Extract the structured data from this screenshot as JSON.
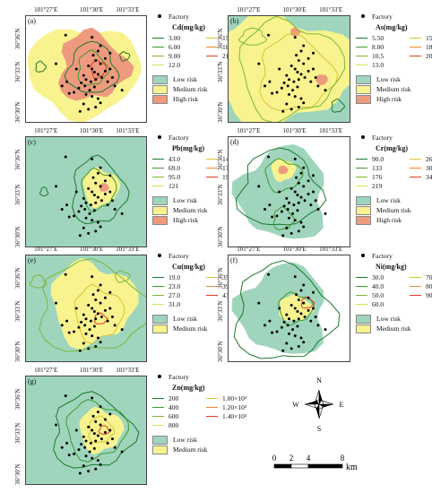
{
  "ticks": {
    "lon": [
      "101°27′E",
      "101°30′E",
      "101°33′E"
    ],
    "lat": [
      "36°36′N",
      "36°33′N",
      "36°30′N"
    ]
  },
  "legend_common": {
    "factory": "Factory",
    "low_risk": "Low risk",
    "medium_risk": "Medium risk",
    "high_risk": "High risk"
  },
  "colors": {
    "low_risk": "#9fd5bd",
    "medium_risk": "#f8f38e",
    "high_risk": "#ee9a7e"
  },
  "panels": [
    {
      "id": "a",
      "label": "(a)",
      "title": "Cd(mg/kg)",
      "classes": [
        "3.00",
        "15.0",
        "6.00",
        "18.0",
        "9.00",
        "21.0",
        "12.0"
      ],
      "class_colors": [
        "#1a7a2a",
        "#d7c33a",
        "#3c9a2c",
        "#f08a2a",
        "#7ab835",
        "#e33b1c",
        "#d8e04a"
      ],
      "risks": [
        "low",
        "medium",
        "high"
      ]
    },
    {
      "id": "b",
      "label": "(b)",
      "title": "As(mg/kg)",
      "classes": [
        "5.50",
        "15.5",
        "8.00",
        "18.0",
        "10.5",
        "20.5",
        "13.0"
      ],
      "class_colors": [
        "#1a7a2a",
        "#d7c33a",
        "#3c9a2c",
        "#f08a2a",
        "#7ab835",
        "#e33b1c",
        "#d8e04a"
      ],
      "risks": [
        "low",
        "medium",
        "high"
      ]
    },
    {
      "id": "c",
      "label": "(c)",
      "title": "Pb(mg/kg)",
      "classes": [
        "43.0",
        "147",
        "69.0",
        "173",
        "95.0",
        "199",
        "121"
      ],
      "class_colors": [
        "#1a7a2a",
        "#d7c33a",
        "#3c9a2c",
        "#f08a2a",
        "#7ab835",
        "#e33b1c",
        "#d8e04a"
      ],
      "risks": [
        "low",
        "medium",
        "high"
      ]
    },
    {
      "id": "d",
      "label": "(d)",
      "title": "Cr(mg/kg)",
      "classes": [
        "90.0",
        "262",
        "133",
        "305",
        "176",
        "348",
        "219"
      ],
      "class_colors": [
        "#1a7a2a",
        "#d7c33a",
        "#3c9a2c",
        "#f08a2a",
        "#7ab835",
        "#e33b1c",
        "#d8e04a"
      ],
      "risks": [
        "low",
        "medium",
        "high"
      ]
    },
    {
      "id": "e",
      "label": "(e)",
      "title": "Cu(mg/kg)",
      "classes": [
        "19.0",
        "35.0",
        "23.0",
        "39.0",
        "27.0",
        "43.0",
        "31.0"
      ],
      "class_colors": [
        "#1a7a2a",
        "#d7c33a",
        "#3c9a2c",
        "#f08a2a",
        "#7ab835",
        "#e33b1c",
        "#d8e04a"
      ],
      "risks": [
        "low",
        "medium"
      ]
    },
    {
      "id": "f",
      "label": "(f)",
      "title": "Ni(mg/kg)",
      "classes": [
        "30.0",
        "70.0",
        "40.0",
        "80.0",
        "50.0",
        "90.0",
        "60.0"
      ],
      "class_colors": [
        "#1a7a2a",
        "#d7c33a",
        "#3c9a2c",
        "#f08a2a",
        "#7ab835",
        "#e33b1c",
        "#d8e04a"
      ],
      "risks": [
        "low",
        "medium"
      ]
    },
    {
      "id": "g",
      "label": "(g)",
      "title": "Zn(mg/kg)",
      "classes": [
        "200",
        "1.00×10³",
        "400",
        "1.20×10³",
        "600",
        "1.40×10³",
        "800"
      ],
      "class_colors": [
        "#1a7a2a",
        "#d7c33a",
        "#3c9a2c",
        "#f08a2a",
        "#7ab835",
        "#e33b1c",
        "#d8e04a"
      ],
      "risks": [
        "low",
        "medium"
      ]
    }
  ],
  "compass": {
    "n": "N",
    "s": "S",
    "e": "E",
    "w": "W"
  },
  "scalebar": {
    "labels": [
      "0",
      "2",
      "4",
      "8"
    ],
    "unit": "km"
  }
}
